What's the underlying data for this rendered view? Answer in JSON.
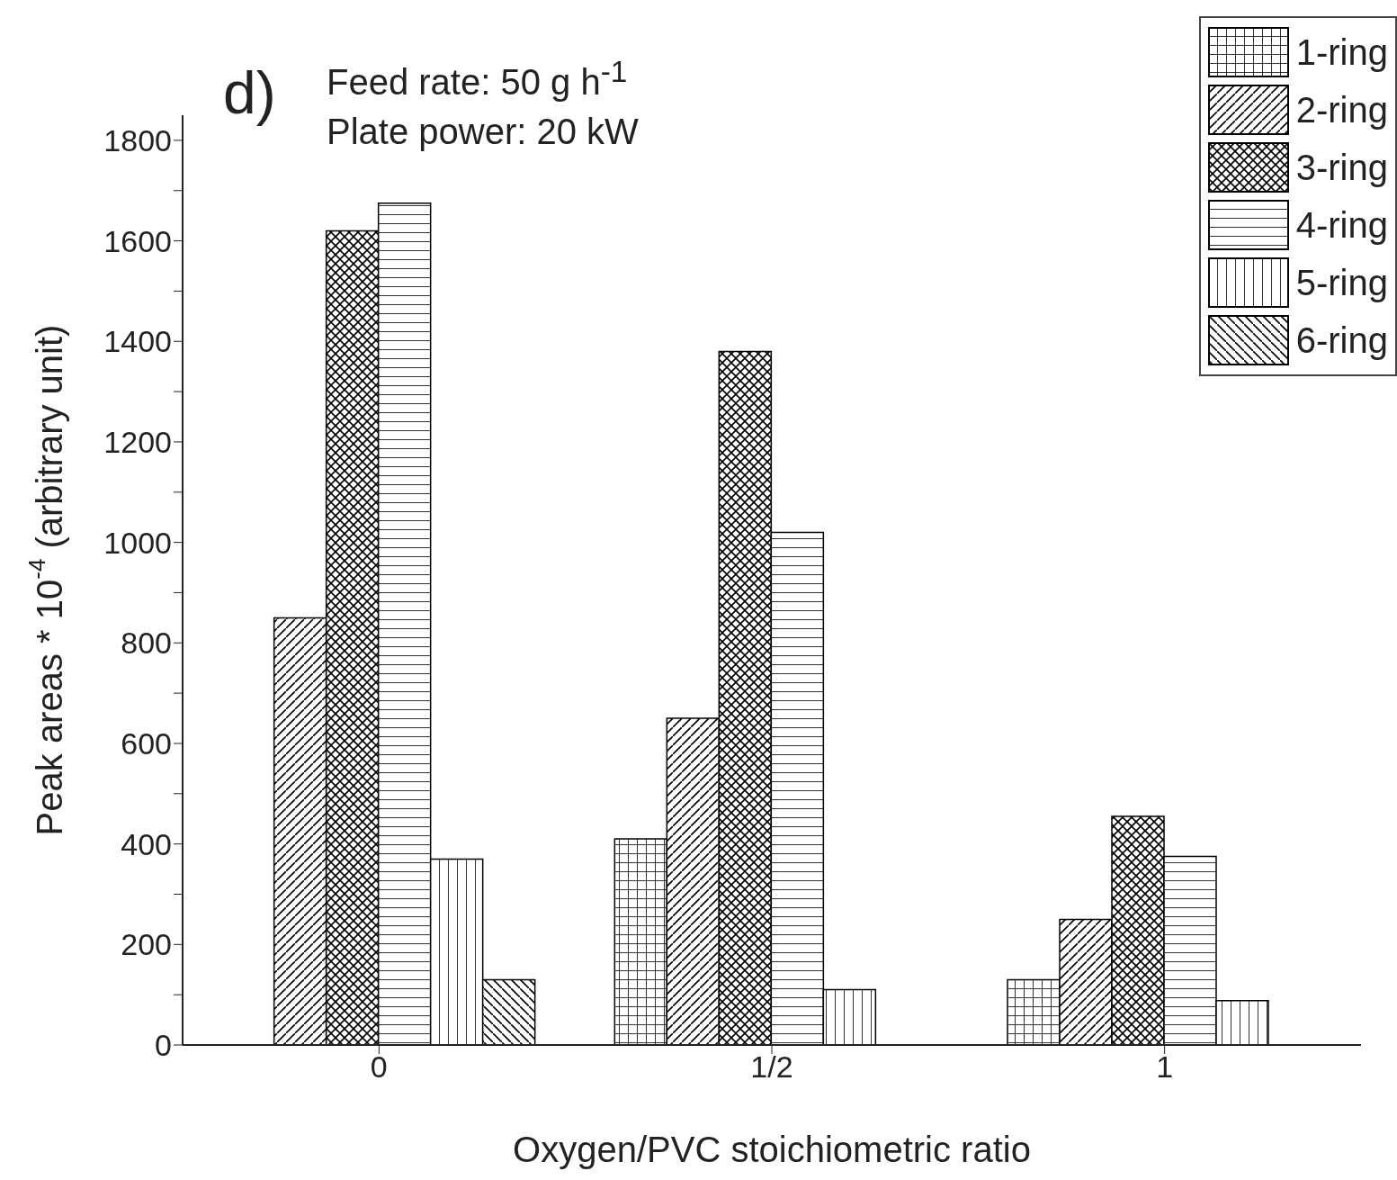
{
  "chart_data": {
    "type": "bar",
    "ylabel": "Peak areas * 10$^{-4}$ (arbitrary unit)",
    "xlabel": "Oxygen/PVC stoichiometric ratio",
    "annotations": [
      "d)",
      "Feed rate: 50 g h$^{-1}$",
      "Plate power: 20 kW"
    ],
    "categories": [
      "0",
      "1/2",
      "1"
    ],
    "series": [
      {
        "name": "1-ring",
        "color": "#000000",
        "values": [
          null,
          410,
          130
        ]
      },
      {
        "name": "2-ring",
        "color": "#000000",
        "values": [
          850,
          650,
          250
        ]
      },
      {
        "name": "3-ring",
        "color": "#000000",
        "values": [
          1620,
          1380,
          455
        ]
      },
      {
        "name": "4-ring",
        "color": "#000000",
        "values": [
          1675,
          1020,
          375
        ]
      },
      {
        "name": "5-ring",
        "color": "#000000",
        "values": [
          370,
          110,
          88
        ]
      },
      {
        "name": "6-ring",
        "color": "#000000",
        "values": [
          130,
          null,
          null
        ]
      }
    ],
    "ylim": [
      0,
      1850
    ],
    "yticks": [
      0,
      {
        "value": 100,
        "label": null
      },
      200,
      {
        "value": 300,
        "label": null
      },
      400,
      {
        "value": 500,
        "label": null
      },
      600,
      {
        "value": 700,
        "label": null
      },
      800,
      {
        "value": 900,
        "label": null
      },
      1000,
      {
        "value": 1100,
        "label": null
      },
      1200,
      {
        "value": 1300,
        "label": null
      },
      1400,
      {
        "value": 1500,
        "label": null
      },
      1600,
      {
        "value": 1700,
        "label": null
      },
      1800
    ],
    "grid": false,
    "legend": "top right"
  }
}
